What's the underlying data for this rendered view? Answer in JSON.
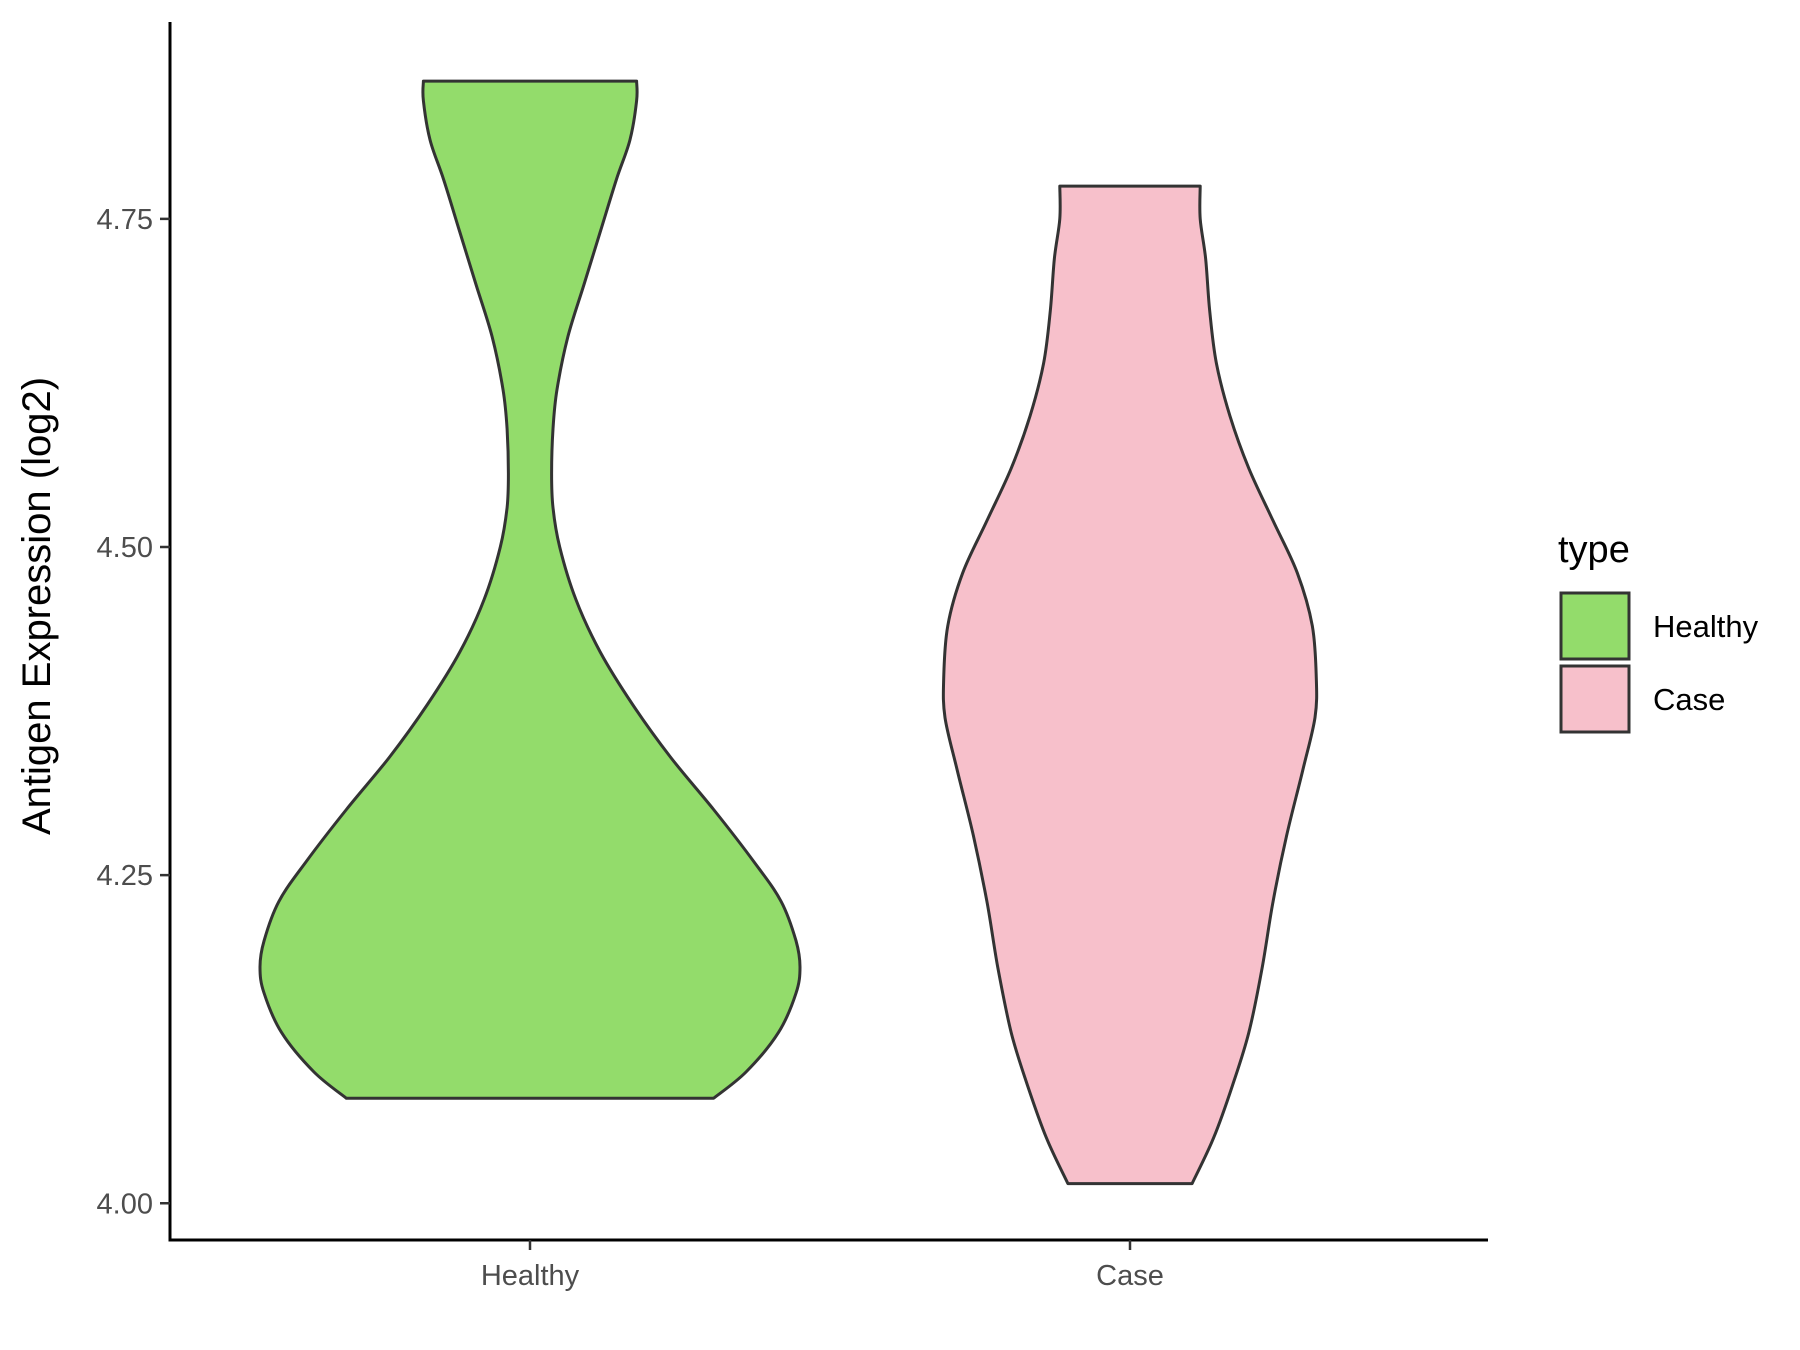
{
  "chart_data": {
    "type": "violin",
    "title": "",
    "xlabel": "",
    "ylabel": "Antigen Expression (log2)",
    "ylim": [
      3.972,
      4.9
    ],
    "y_ticks": [
      "4.00",
      "4.25",
      "4.50",
      "4.75"
    ],
    "grid": false,
    "categories": [
      "Healthy",
      "Case"
    ],
    "series": [
      {
        "name": "Healthy",
        "color": "#93dc6b",
        "y_min": 4.08,
        "y_max": 4.855,
        "density": [
          [
            4.08,
            0.68
          ],
          [
            4.1,
            0.8
          ],
          [
            4.13,
            0.92
          ],
          [
            4.16,
            0.985
          ],
          [
            4.18,
            1.0
          ],
          [
            4.2,
            0.985
          ],
          [
            4.23,
            0.93
          ],
          [
            4.26,
            0.83
          ],
          [
            4.3,
            0.68
          ],
          [
            4.34,
            0.52
          ],
          [
            4.38,
            0.38
          ],
          [
            4.42,
            0.26
          ],
          [
            4.46,
            0.17
          ],
          [
            4.5,
            0.11
          ],
          [
            4.53,
            0.085
          ],
          [
            4.556,
            0.08
          ],
          [
            4.59,
            0.085
          ],
          [
            4.62,
            0.1
          ],
          [
            4.66,
            0.14
          ],
          [
            4.7,
            0.2
          ],
          [
            4.74,
            0.26
          ],
          [
            4.78,
            0.32
          ],
          [
            4.81,
            0.37
          ],
          [
            4.84,
            0.395
          ],
          [
            4.855,
            0.395
          ]
        ]
      },
      {
        "name": "Case",
        "color": "#f7c0cb",
        "y_min": 4.015,
        "y_max": 4.775,
        "density": [
          [
            4.015,
            0.23
          ],
          [
            4.05,
            0.31
          ],
          [
            4.09,
            0.38
          ],
          [
            4.13,
            0.44
          ],
          [
            4.18,
            0.49
          ],
          [
            4.23,
            0.53
          ],
          [
            4.28,
            0.58
          ],
          [
            4.33,
            0.64
          ],
          [
            4.37,
            0.685
          ],
          [
            4.4,
            0.69
          ],
          [
            4.44,
            0.675
          ],
          [
            4.48,
            0.62
          ],
          [
            4.52,
            0.53
          ],
          [
            4.56,
            0.44
          ],
          [
            4.6,
            0.37
          ],
          [
            4.64,
            0.32
          ],
          [
            4.68,
            0.295
          ],
          [
            4.72,
            0.28
          ],
          [
            4.75,
            0.26
          ],
          [
            4.775,
            0.26
          ]
        ]
      }
    ],
    "legend": {
      "title": "type",
      "position": "right",
      "items": [
        {
          "label": "Healthy",
          "color": "#93dc6b"
        },
        {
          "label": "Case",
          "color": "#f7c0cb"
        }
      ]
    }
  }
}
